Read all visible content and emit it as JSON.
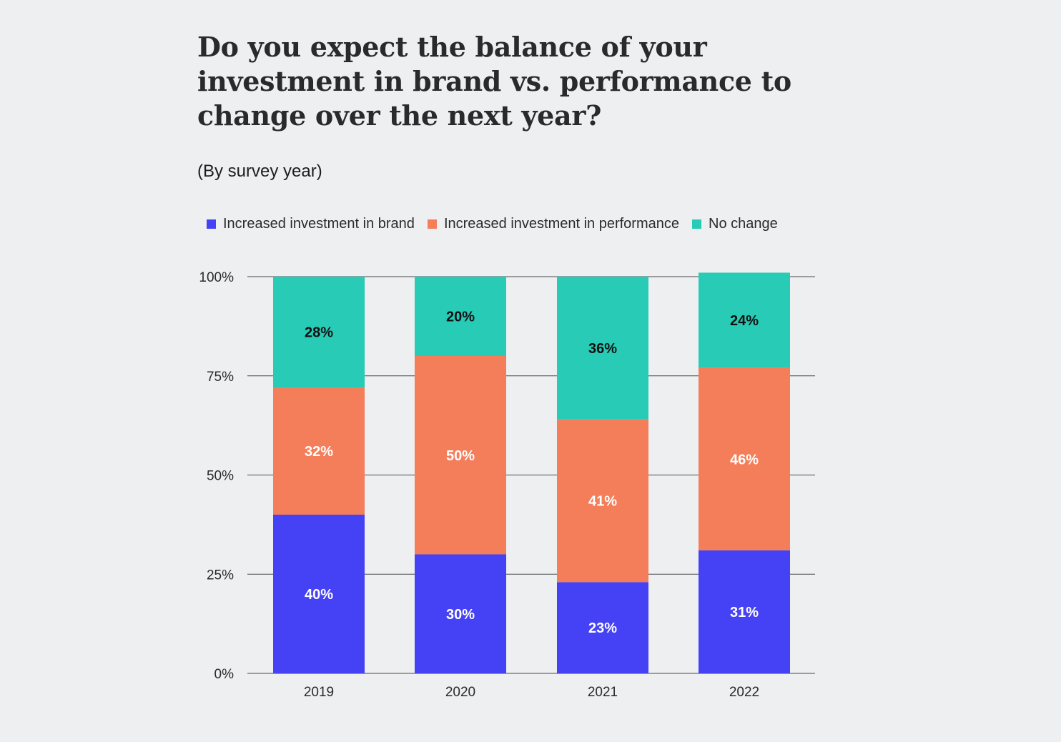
{
  "chart_data": {
    "type": "bar",
    "stacked": true,
    "title": "Do you expect the balance of your investment in brand vs. performance to change over the next year?",
    "subtitle": "(By survey year)",
    "xlabel": "",
    "ylabel": "",
    "ylim": [
      0,
      100
    ],
    "yticks": [
      {
        "value": 0,
        "label": "0%"
      },
      {
        "value": 25,
        "label": "25%"
      },
      {
        "value": 50,
        "label": "50%"
      },
      {
        "value": 75,
        "label": "75%"
      },
      {
        "value": 100,
        "label": "100%"
      }
    ],
    "categories": [
      "2019",
      "2020",
      "2021",
      "2022"
    ],
    "legend_position": "top",
    "grid": true,
    "series": [
      {
        "name": "Increased investment in brand",
        "color": "#4541f5",
        "label_color": "#ffffff",
        "values": [
          40,
          30,
          23,
          31
        ],
        "labels": [
          "40%",
          "30%",
          "23%",
          "31%"
        ]
      },
      {
        "name": "Increased investment in performance",
        "color": "#f47e5a",
        "label_color": "#ffffff",
        "values": [
          32,
          50,
          41,
          46
        ],
        "labels": [
          "32%",
          "50%",
          "41%",
          "46%"
        ]
      },
      {
        "name": "No change",
        "color": "#27cbb6",
        "label_color": "#111111",
        "values": [
          28,
          20,
          36,
          24
        ],
        "labels": [
          "28%",
          "20%",
          "36%",
          "24%"
        ]
      }
    ]
  }
}
